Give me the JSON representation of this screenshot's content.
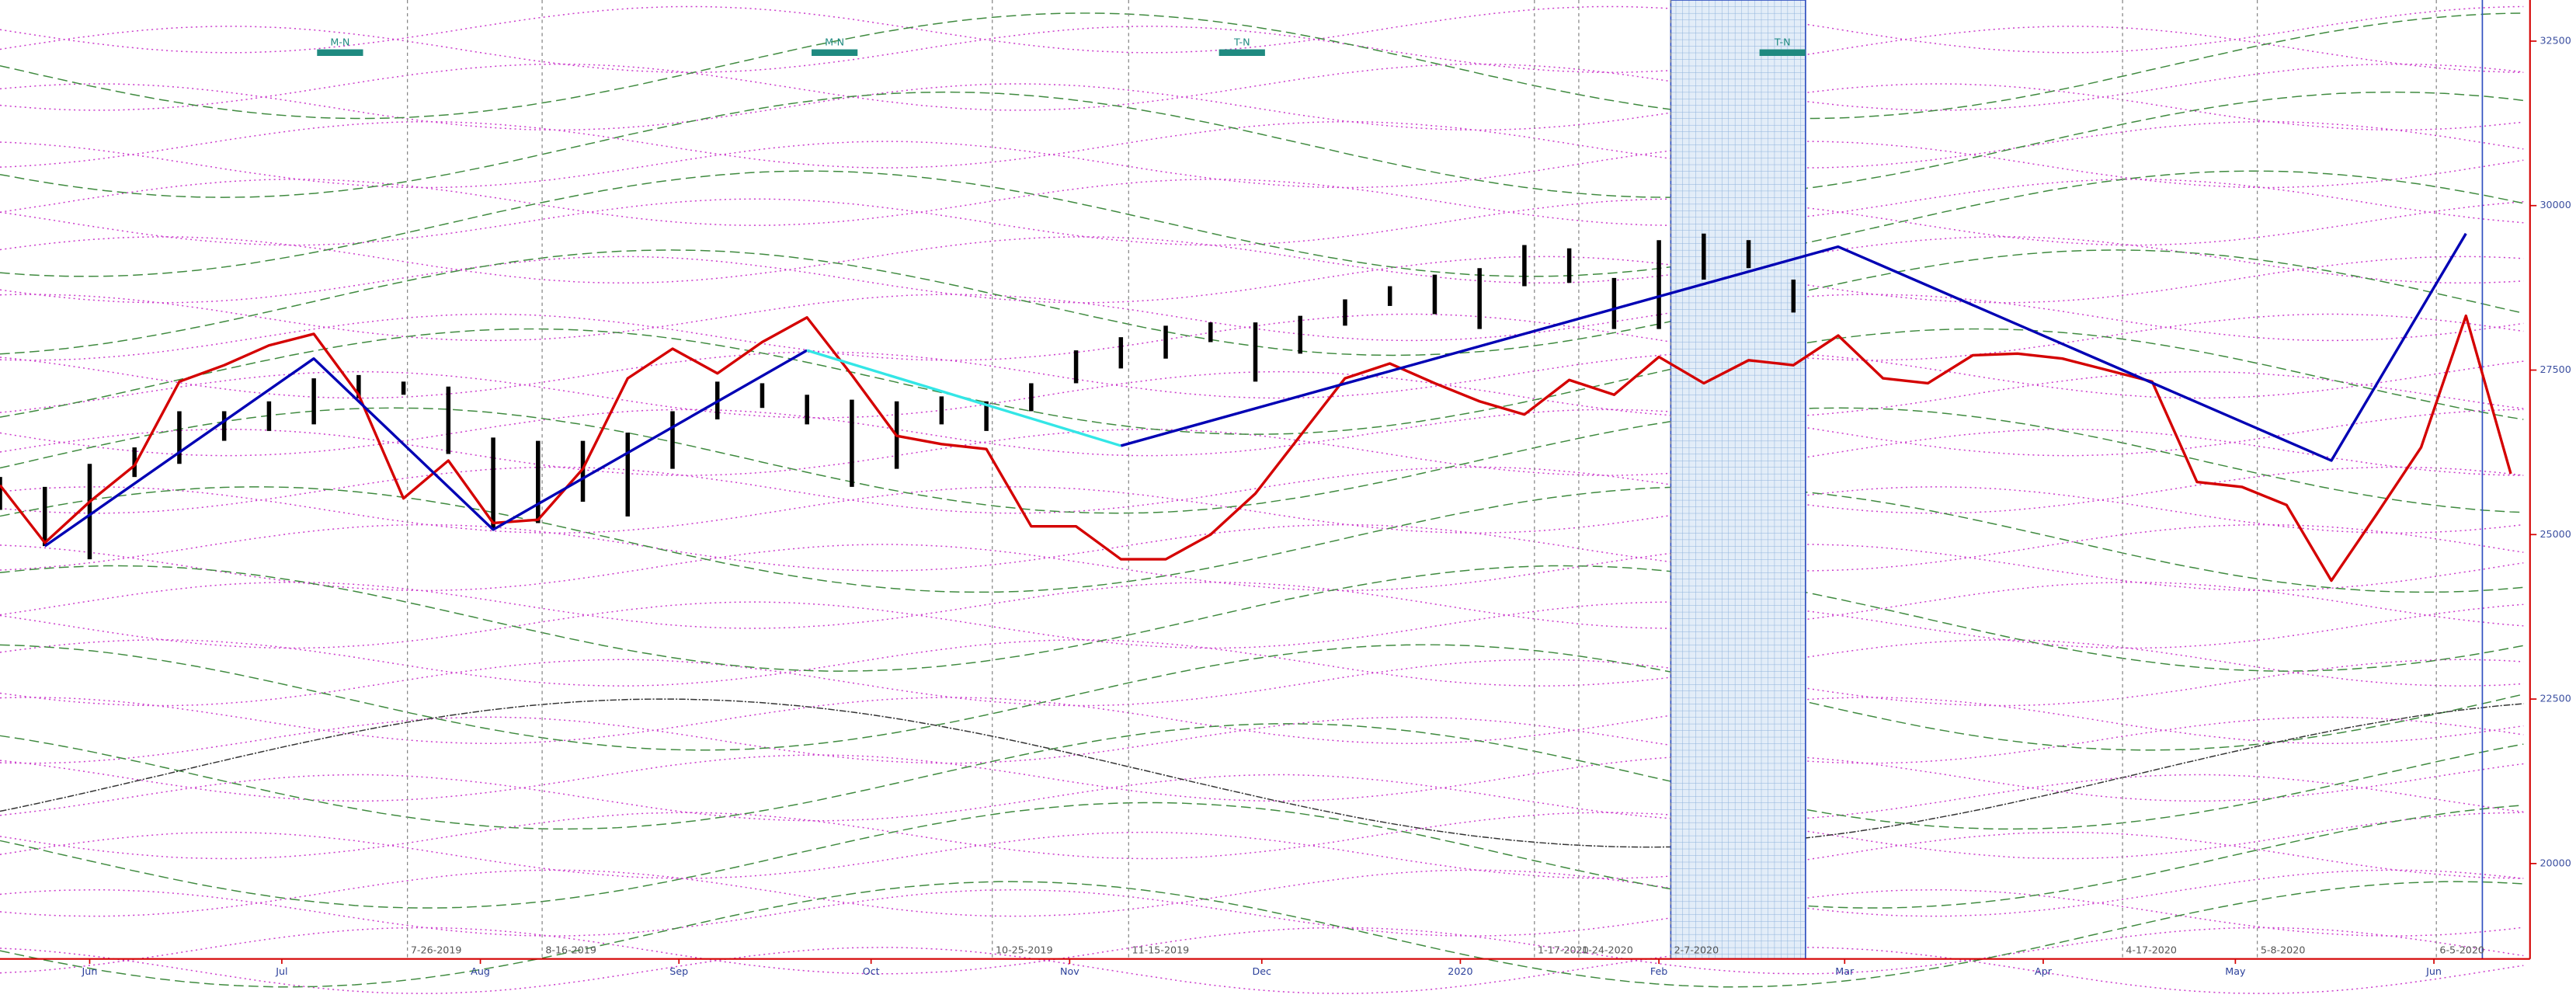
{
  "chart_data": {
    "type": "line",
    "xlim": [
      -14,
      381
    ],
    "ylim": [
      18550,
      33125
    ],
    "xticks": [
      {
        "value": 0,
        "label": "Jun"
      },
      {
        "value": 30,
        "label": "Jul"
      },
      {
        "value": 61,
        "label": "Aug"
      },
      {
        "value": 92,
        "label": "Sep"
      },
      {
        "value": 122,
        "label": "Oct"
      },
      {
        "value": 153,
        "label": "Nov"
      },
      {
        "value": 183,
        "label": "Dec"
      },
      {
        "value": 214,
        "label": "2020"
      },
      {
        "value": 245,
        "label": "Feb"
      },
      {
        "value": 274,
        "label": "Mar"
      },
      {
        "value": 305,
        "label": "Apr"
      },
      {
        "value": 335,
        "label": "May"
      },
      {
        "value": 366,
        "label": "Jun"
      }
    ],
    "yticks": [
      20000,
      22500,
      25000,
      27500,
      30000,
      32500
    ],
    "bars": {
      "color": "#000000",
      "x": [
        -14,
        -7,
        0,
        7,
        14,
        21,
        28,
        35,
        42,
        49,
        56,
        63,
        70,
        77,
        84,
        91,
        98,
        105,
        112,
        119,
        126,
        133,
        140,
        147,
        154,
        161,
        168,
        175,
        182,
        189,
        196,
        203,
        210,
        217,
        224,
        231,
        238,
        245,
        252,
        259,
        266
      ],
      "high": [
        25875,
        25725,
        26075,
        26325,
        26875,
        26875,
        27025,
        27375,
        27425,
        27325,
        27250,
        26475,
        26425,
        26425,
        26550,
        26875,
        27325,
        27300,
        27125,
        27050,
        27025,
        27100,
        27025,
        27300,
        27800,
        28000,
        28175,
        28225,
        28225,
        28325,
        28575,
        28775,
        28950,
        29050,
        29400,
        29350,
        28900,
        29475,
        29575,
        29475,
        28875
      ],
      "low": [
        25375,
        24825,
        24625,
        25875,
        26075,
        26425,
        26575,
        26675,
        27075,
        27125,
        26225,
        25075,
        25175,
        25500,
        25275,
        26000,
        26750,
        26925,
        26675,
        25725,
        26000,
        26675,
        26575,
        26875,
        27300,
        27525,
        27675,
        27925,
        27325,
        27750,
        28175,
        28475,
        28350,
        28125,
        28775,
        28825,
        28125,
        28125,
        28875,
        29050,
        28375
      ]
    },
    "series": [
      {
        "color": "#d40000",
        "x": [
          -14,
          -7,
          0,
          7,
          14,
          21,
          28,
          35,
          42,
          49,
          56,
          63,
          70,
          77,
          84,
          91,
          98,
          105,
          112,
          119,
          126,
          133,
          140,
          147,
          154,
          161,
          168,
          175,
          182,
          189,
          196,
          203,
          210,
          217,
          224,
          231,
          238,
          245,
          252,
          259,
          266,
          273,
          280,
          287,
          294,
          301,
          308,
          315,
          322,
          329,
          336,
          343,
          350,
          357,
          364,
          371,
          378
        ],
        "values": [
          25750,
          24875,
          25500,
          26050,
          27325,
          27575,
          27875,
          28050,
          27125,
          25550,
          26125,
          25175,
          25225,
          26000,
          27375,
          27825,
          27450,
          27925,
          28300,
          27425,
          26500,
          26375,
          26300,
          25125,
          25125,
          24625,
          24625,
          25000,
          25625,
          26500,
          27375,
          27600,
          27300,
          27025,
          26825,
          27350,
          27125,
          27700,
          27300,
          27650,
          27575,
          28025,
          27375,
          27300,
          27725,
          27750,
          27675,
          27500,
          27325,
          25800,
          25725,
          25450,
          24300,
          25300,
          26325,
          28325,
          25925
        ]
      },
      {
        "color": "#0000b4",
        "x": [
          -7,
          35,
          63,
          112
        ],
        "values": [
          24825,
          27675,
          25075,
          27800
        ]
      },
      {
        "color": "#33e6e6",
        "x": [
          112,
          161
        ],
        "values": [
          27800,
          26350
        ]
      },
      {
        "color": "#0000b4",
        "x": [
          161,
          273,
          350,
          371
        ],
        "values": [
          26350,
          29375,
          26125,
          29575
        ]
      }
    ],
    "markers": [
      "7-26-2019",
      "8-16-2019",
      "10-25-2019",
      "11-15-2019",
      "1-17-2020",
      "1-24-2020",
      "2-7-2020",
      "4-17-2020",
      "5-8-2020",
      "6-5-2020"
    ],
    "top_labels": [
      "M-N",
      "M-N",
      "T-N",
      "T-N"
    ]
  }
}
